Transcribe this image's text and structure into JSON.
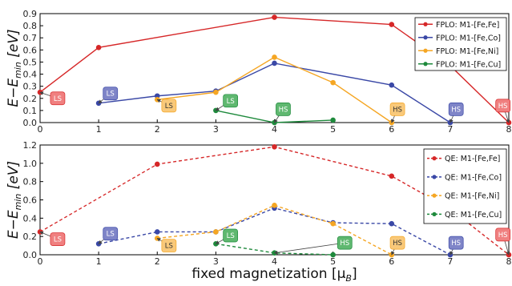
{
  "chart_data": [
    {
      "type": "line",
      "style": "solid",
      "ylabel": "E−E_min [eV]",
      "xlim": [
        0,
        8
      ],
      "ylim": [
        0,
        0.9
      ],
      "yticks": [
        "0.0",
        "0.1",
        "0.2",
        "0.3",
        "0.4",
        "0.5",
        "0.6",
        "0.7",
        "0.8",
        "0.9"
      ],
      "xticks": [
        "0",
        "1",
        "2",
        "3",
        "4",
        "5",
        "6",
        "7",
        "8"
      ],
      "grid": false,
      "legend_position": "top-right",
      "series": [
        {
          "name": "FPLO: M1-[Fe,Fe]",
          "color": "#d62728",
          "x": [
            0,
            1,
            4,
            6,
            7,
            8
          ],
          "y": [
            0.25,
            0.62,
            0.87,
            0.81,
            0.47,
            0.0
          ]
        },
        {
          "name": "FPLO: M1-[Fe,Co]",
          "color": "#3a48a6",
          "x": [
            1,
            2,
            3,
            4,
            6,
            7
          ],
          "y": [
            0.16,
            0.22,
            0.26,
            0.49,
            0.31,
            0.0
          ]
        },
        {
          "name": "FPLO: M1-[Fe,Ni]",
          "color": "#f5a623",
          "x": [
            2,
            3,
            4,
            5,
            6
          ],
          "y": [
            0.19,
            0.25,
            0.54,
            0.33,
            0.0
          ]
        },
        {
          "name": "FPLO: M1-[Fe,Cu]",
          "color": "#1e8a3c",
          "x": [
            3,
            4,
            5
          ],
          "y": [
            0.1,
            0.0,
            0.02
          ]
        }
      ],
      "annotations": [
        {
          "text": "LS",
          "series": 0,
          "x": 0.3,
          "y": 0.2,
          "fill": "#f08080",
          "tx": 0,
          "ty": 0.25
        },
        {
          "text": "LS",
          "series": 1,
          "x": 1.2,
          "y": 0.24,
          "fill": "#7f85c8",
          "tx": 1,
          "ty": 0.16
        },
        {
          "text": "LS",
          "series": 2,
          "x": 2.2,
          "y": 0.14,
          "fill": "#f9c97a",
          "tx": 2,
          "ty": 0.19
        },
        {
          "text": "LS",
          "series": 3,
          "x": 3.25,
          "y": 0.18,
          "fill": "#5fb870",
          "tx": 3,
          "ty": 0.1
        },
        {
          "text": "HS",
          "series": 3,
          "x": 4.15,
          "y": 0.11,
          "fill": "#5fb870",
          "tx": 4,
          "ty": 0.0
        },
        {
          "text": "HS",
          "series": 2,
          "x": 6.1,
          "y": 0.11,
          "fill": "#f9c97a",
          "tx": 6,
          "ty": 0.0
        },
        {
          "text": "HS",
          "series": 1,
          "x": 7.1,
          "y": 0.11,
          "fill": "#7f85c8",
          "tx": 7,
          "ty": 0.0
        },
        {
          "text": "HS",
          "series": 0,
          "x": 7.9,
          "y": 0.14,
          "fill": "#f08080",
          "tx": 8,
          "ty": 0.0
        }
      ]
    },
    {
      "type": "line",
      "style": "dashed",
      "ylabel": "E−E_min [eV]",
      "xlabel": "fixed magnetization [μ_B]",
      "xlim": [
        0,
        8
      ],
      "ylim": [
        0,
        1.2
      ],
      "yticks": [
        "0.0",
        "0.2",
        "0.4",
        "0.6",
        "0.8",
        "1.0",
        "1.2"
      ],
      "xticks": [
        "0",
        "1",
        "2",
        "3",
        "4",
        "5",
        "6",
        "7",
        "8"
      ],
      "grid": false,
      "legend_position": "top-right",
      "series": [
        {
          "name": "QE: M1-[Fe,Fe]",
          "color": "#d62728",
          "x": [
            0,
            2,
            4,
            6,
            7,
            8
          ],
          "y": [
            0.25,
            0.99,
            1.18,
            0.86,
            0.5,
            0.0
          ]
        },
        {
          "name": "QE: M1-[Fe,Co]",
          "color": "#3a48a6",
          "x": [
            1,
            2,
            3,
            4,
            5,
            6,
            7
          ],
          "y": [
            0.12,
            0.25,
            0.25,
            0.51,
            0.35,
            0.34,
            0.0
          ]
        },
        {
          "name": "QE: M1-[Fe,Ni]",
          "color": "#f5a623",
          "x": [
            2,
            3,
            4,
            5,
            6
          ],
          "y": [
            0.18,
            0.25,
            0.54,
            0.34,
            0.0
          ]
        },
        {
          "name": "QE: M1-[Fe,Cu]",
          "color": "#1e8a3c",
          "x": [
            3,
            4,
            5
          ],
          "y": [
            0.12,
            0.02,
            0.0
          ]
        }
      ],
      "annotations": [
        {
          "text": "LS",
          "series": 0,
          "x": 0.3,
          "y": 0.17,
          "fill": "#f08080",
          "tx": 0,
          "ty": 0.25
        },
        {
          "text": "LS",
          "series": 1,
          "x": 1.2,
          "y": 0.23,
          "fill": "#7f85c8",
          "tx": 1,
          "ty": 0.12
        },
        {
          "text": "LS",
          "series": 2,
          "x": 2.2,
          "y": 0.1,
          "fill": "#f9c97a",
          "tx": 2,
          "ty": 0.18
        },
        {
          "text": "LS",
          "series": 3,
          "x": 3.25,
          "y": 0.21,
          "fill": "#5fb870",
          "tx": 3,
          "ty": 0.12
        },
        {
          "text": "HS",
          "series": 3,
          "x": 5.2,
          "y": 0.13,
          "fill": "#5fb870",
          "tx": 4,
          "ty": 0.02
        },
        {
          "text": "HS",
          "series": 2,
          "x": 6.1,
          "y": 0.13,
          "fill": "#f9c97a",
          "tx": 6,
          "ty": 0.0
        },
        {
          "text": "HS",
          "series": 1,
          "x": 7.1,
          "y": 0.13,
          "fill": "#7f85c8",
          "tx": 7,
          "ty": 0.0
        },
        {
          "text": "HS",
          "series": 0,
          "x": 7.9,
          "y": 0.22,
          "fill": "#f08080",
          "tx": 8,
          "ty": 0.0
        }
      ]
    }
  ]
}
